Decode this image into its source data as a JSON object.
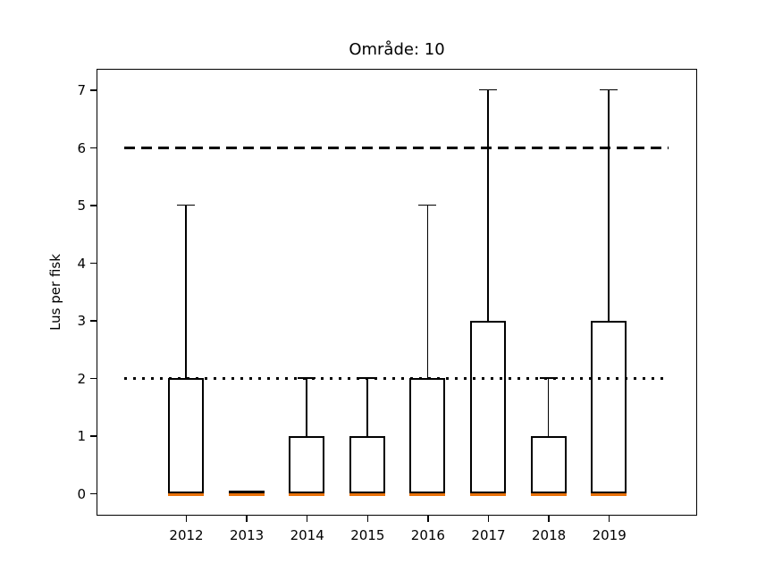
{
  "chart_data": {
    "type": "boxplot",
    "title": "Område: 10",
    "ylabel": "Lus per fisk",
    "xlabel": "",
    "categories": [
      "2012",
      "2013",
      "2014",
      "2015",
      "2016",
      "2017",
      "2018",
      "2019"
    ],
    "yticks": [
      0,
      1,
      2,
      3,
      4,
      5,
      6,
      7
    ],
    "ylim": [
      -0.4,
      7.35
    ],
    "grid": false,
    "legend": false,
    "boxes": [
      {
        "category": "2012",
        "whisker_low": 0,
        "q1": 0,
        "median": 0,
        "q3": 2,
        "whisker_high": 5
      },
      {
        "category": "2013",
        "whisker_low": 0,
        "q1": 0,
        "median": 0,
        "q3": 0,
        "whisker_high": 0
      },
      {
        "category": "2014",
        "whisker_low": 0,
        "q1": 0,
        "median": 0,
        "q3": 1,
        "whisker_high": 2
      },
      {
        "category": "2015",
        "whisker_low": 0,
        "q1": 0,
        "median": 0,
        "q3": 1,
        "whisker_high": 2
      },
      {
        "category": "2016",
        "whisker_low": 0,
        "q1": 0,
        "median": 0,
        "q3": 2,
        "whisker_high": 5
      },
      {
        "category": "2017",
        "whisker_low": 0,
        "q1": 0,
        "median": 0,
        "q3": 3,
        "whisker_high": 7
      },
      {
        "category": "2018",
        "whisker_low": 0,
        "q1": 0,
        "median": 0,
        "q3": 1,
        "whisker_high": 2
      },
      {
        "category": "2019",
        "whisker_low": 0,
        "q1": 0,
        "median": 0,
        "q3": 3,
        "whisker_high": 7
      }
    ],
    "reference_lines": [
      {
        "y": 6,
        "style": "dashed",
        "color": "#000000"
      },
      {
        "y": 2,
        "style": "dotted",
        "color": "#000000"
      }
    ],
    "colors": {
      "box_edge": "#000000",
      "median": "#e8710a",
      "whisker": "#000000",
      "background": "#ffffff"
    }
  }
}
